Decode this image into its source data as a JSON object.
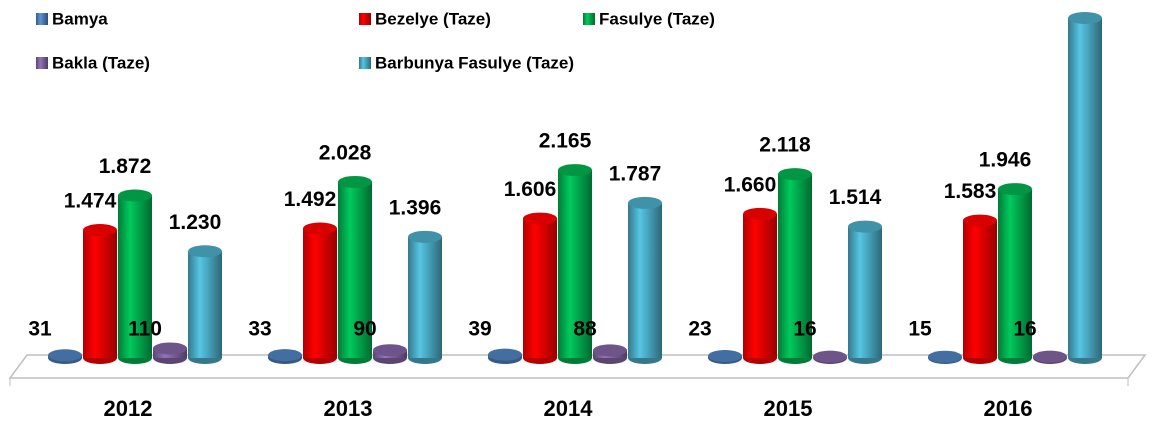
{
  "chart_data": {
    "type": "bar",
    "categories": [
      "2012",
      "2013",
      "2014",
      "2015",
      "2016"
    ],
    "series": [
      {
        "name": "Bamya",
        "color": "#4f81bd",
        "values": [
          31,
          33,
          39,
          23,
          15
        ],
        "value_labels": [
          "31",
          "33",
          "39",
          "23",
          "15"
        ]
      },
      {
        "name": "Bezelye (Taze)",
        "color": "#ff0000",
        "values": [
          1474,
          1492,
          1606,
          1660,
          1583
        ],
        "value_labels": [
          "1.474",
          "1.492",
          "1.606",
          "1.660",
          "1.583"
        ]
      },
      {
        "name": "Fasulye (Taze)",
        "color": "#00b050",
        "values": [
          1872,
          2028,
          2165,
          2118,
          1946
        ],
        "value_labels": [
          "1.872",
          "2.028",
          "2.165",
          "2.118",
          "1.946"
        ]
      },
      {
        "name": "Bakla (Taze)",
        "color": "#8064a2",
        "values": [
          110,
          90,
          88,
          16,
          16
        ],
        "value_labels": [
          "110",
          "90",
          "88",
          "16",
          "16"
        ]
      },
      {
        "name": "Barbunya Fasulye (Taze)",
        "color": "#4bacc6",
        "values": [
          1230,
          1396,
          1787,
          1514,
          3917
        ],
        "value_labels": [
          "1.230",
          "1.396",
          "1.787",
          "1.514",
          null
        ]
      }
    ]
  }
}
